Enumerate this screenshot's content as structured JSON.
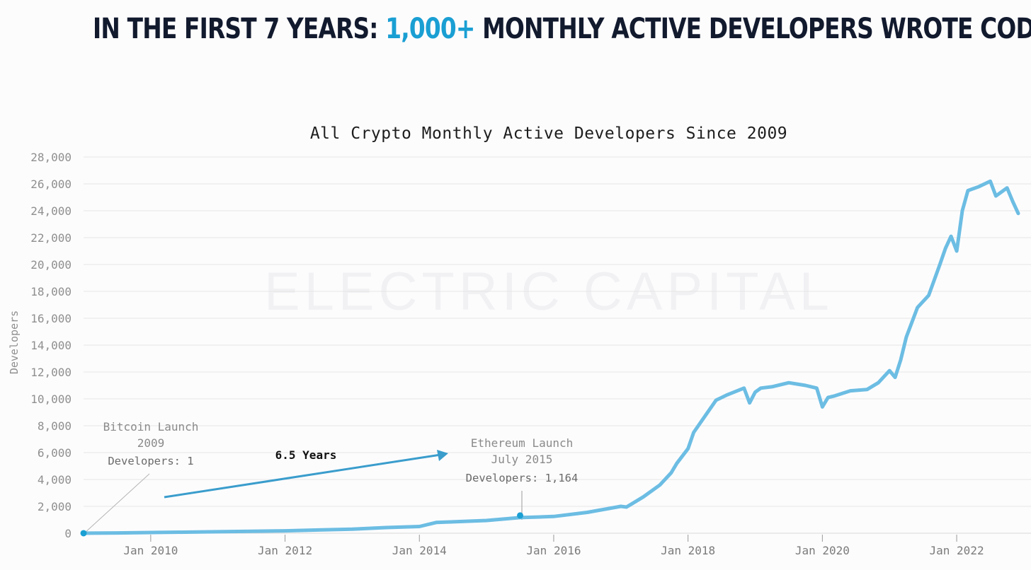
{
  "headline": {
    "prefix": "IN THE FIRST 7 YEARS: ",
    "highlight": "1,000+",
    "suffix": " MONTHLY ACTIVE DEVELOPERS WROTE CODE",
    "highlight_color": "#1a9fd3"
  },
  "watermark": "ELECTRIC CAPITAL",
  "chart_data": {
    "type": "line",
    "title": "All Crypto Monthly Active Developers Since 2009",
    "xlabel": "",
    "ylabel": "Developers",
    "ylim": [
      0,
      28000
    ],
    "yticks": [
      0,
      2000,
      4000,
      6000,
      8000,
      10000,
      12000,
      14000,
      16000,
      18000,
      20000,
      22000,
      24000,
      26000,
      28000
    ],
    "ytick_labels": [
      "0",
      "2,000",
      "4,000",
      "6,000",
      "8,000",
      "10,000",
      "12,000",
      "14,000",
      "16,000",
      "18,000",
      "20,000",
      "22,000",
      "24,000",
      "26,000",
      "28,000"
    ],
    "xlim": [
      "2009-01",
      "2022-12"
    ],
    "xticks": [
      "2010-01",
      "2012-01",
      "2014-01",
      "2016-01",
      "2018-01",
      "2020-01",
      "2022-01"
    ],
    "xtick_labels": [
      "Jan 2010",
      "Jan 2012",
      "Jan 2014",
      "Jan 2016",
      "Jan 2018",
      "Jan 2020",
      "Jan 2022"
    ],
    "grid": true,
    "line_color": "#6cbde3",
    "series": [
      {
        "x": [
          "2009-01",
          "2009-07",
          "2010-01",
          "2010-07",
          "2011-01",
          "2011-07",
          "2012-01",
          "2012-07",
          "2013-01",
          "2013-07",
          "2014-01",
          "2014-04",
          "2014-07",
          "2015-01",
          "2015-07",
          "2016-01",
          "2016-07",
          "2017-01",
          "2017-02",
          "2017-05",
          "2017-08",
          "2017-10",
          "2017-11",
          "2018-01",
          "2018-02",
          "2018-04",
          "2018-06",
          "2018-08",
          "2018-11",
          "2018-12",
          "2019-01",
          "2019-02",
          "2019-04",
          "2019-07",
          "2019-10",
          "2019-12",
          "2020-01",
          "2020-02",
          "2020-03",
          "2020-06",
          "2020-09",
          "2020-11",
          "2021-01",
          "2021-02",
          "2021-03",
          "2021-04",
          "2021-06",
          "2021-08",
          "2021-10",
          "2021-11",
          "2021-12",
          "2022-01",
          "2022-02",
          "2022-03",
          "2022-05",
          "2022-07",
          "2022-08",
          "2022-10",
          "2022-11",
          "2022-12"
        ],
        "y": [
          1,
          20,
          50,
          80,
          110,
          140,
          180,
          240,
          300,
          420,
          500,
          800,
          850,
          950,
          1164,
          1250,
          1550,
          2000,
          1950,
          2700,
          3600,
          4500,
          5200,
          6300,
          7500,
          8700,
          9900,
          10300,
          10800,
          9700,
          10500,
          10800,
          10900,
          11200,
          11000,
          10800,
          9400,
          10100,
          10200,
          10600,
          10700,
          11200,
          12100,
          11600,
          12900,
          14600,
          16800,
          17700,
          20000,
          21200,
          22100,
          21000,
          24000,
          25500,
          25800,
          26200,
          25100,
          25700,
          24700,
          23800
        ]
      }
    ],
    "annotations": [
      {
        "x": "2009-01",
        "y": 1,
        "lines": [
          "Bitcoin Launch",
          "2009",
          "Developers: 1"
        ]
      },
      {
        "x": "2015-07",
        "y": 1164,
        "lines": [
          "Ethereum Launch",
          "July 2015",
          "Developers: 1,164"
        ]
      },
      {
        "label": "6.5 Years"
      }
    ]
  }
}
